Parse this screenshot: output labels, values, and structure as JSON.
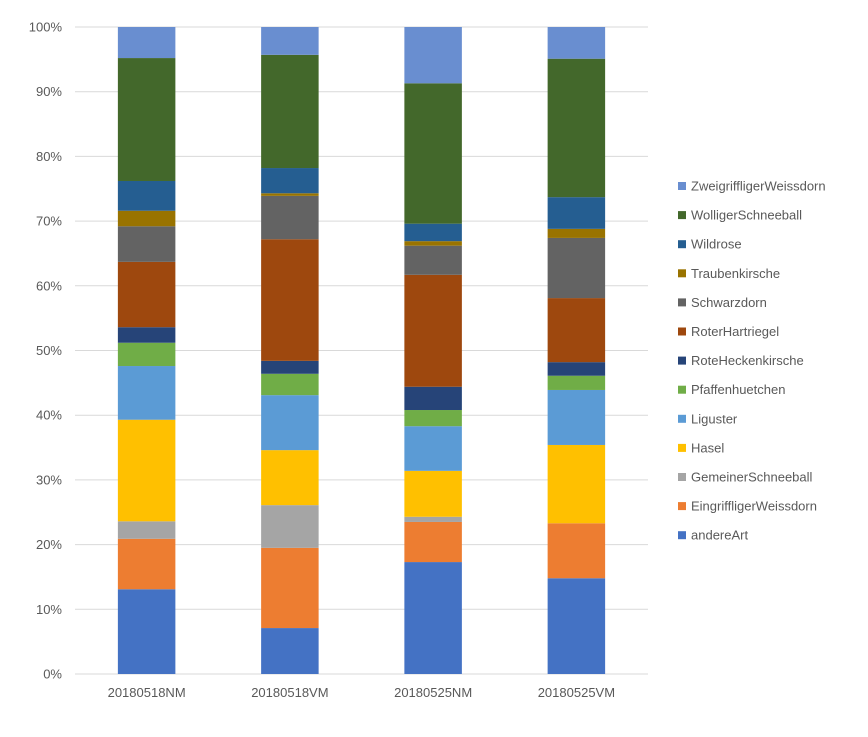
{
  "chart_data": {
    "type": "bar",
    "stacked": "percent",
    "title": "",
    "xlabel": "",
    "ylabel": "",
    "ylim": [
      0,
      100
    ],
    "yticks": [
      "0%",
      "10%",
      "20%",
      "30%",
      "40%",
      "50%",
      "60%",
      "70%",
      "80%",
      "90%",
      "100%"
    ],
    "grid": true,
    "legend_position": "right",
    "categories": [
      "20180518NM",
      "20180518VM",
      "20180525NM",
      "20180525VM"
    ],
    "series": [
      {
        "name": "andereArt",
        "color": "#4472C4",
        "values": [
          13.1,
          7.1,
          17.3,
          14.8
        ]
      },
      {
        "name": "EingriffligerWeissdorn",
        "color": "#ED7D31",
        "values": [
          7.8,
          12.4,
          6.2,
          8.5
        ]
      },
      {
        "name": "GemeinerSchneeball",
        "color": "#A5A5A5",
        "values": [
          2.7,
          6.6,
          0.8,
          0
        ]
      },
      {
        "name": "Hasel",
        "color": "#FFC000",
        "values": [
          15.7,
          8.5,
          7.1,
          12.1
        ]
      },
      {
        "name": "Liguster",
        "color": "#5B9BD5",
        "values": [
          8.3,
          8.5,
          6.9,
          8.5
        ]
      },
      {
        "name": "Pfaffenhuetchen",
        "color": "#70AD47",
        "values": [
          3.6,
          3.3,
          2.5,
          2.2
        ]
      },
      {
        "name": "RoteHeckenkirsche",
        "color": "#264478",
        "values": [
          2.4,
          2.0,
          3.6,
          2.1
        ]
      },
      {
        "name": "RoterHartriegel",
        "color": "#9E480E",
        "values": [
          10.1,
          18.8,
          17.3,
          9.9
        ]
      },
      {
        "name": "Schwarzdorn",
        "color": "#636363",
        "values": [
          5.5,
          6.7,
          4.5,
          9.3
        ]
      },
      {
        "name": "Traubenkirsche",
        "color": "#997300",
        "values": [
          2.4,
          0.4,
          0.7,
          1.4
        ]
      },
      {
        "name": "Wildrose",
        "color": "#255E91",
        "values": [
          4.6,
          3.9,
          2.7,
          4.9
        ]
      },
      {
        "name": "WolligerSchneeball",
        "color": "#43682B",
        "values": [
          19.0,
          17.5,
          21.7,
          21.4
        ]
      },
      {
        "name": "ZweigriffligerWeissdorn",
        "color": "#698ED0",
        "values": [
          4.8,
          4.3,
          8.7,
          4.9
        ]
      }
    ]
  }
}
